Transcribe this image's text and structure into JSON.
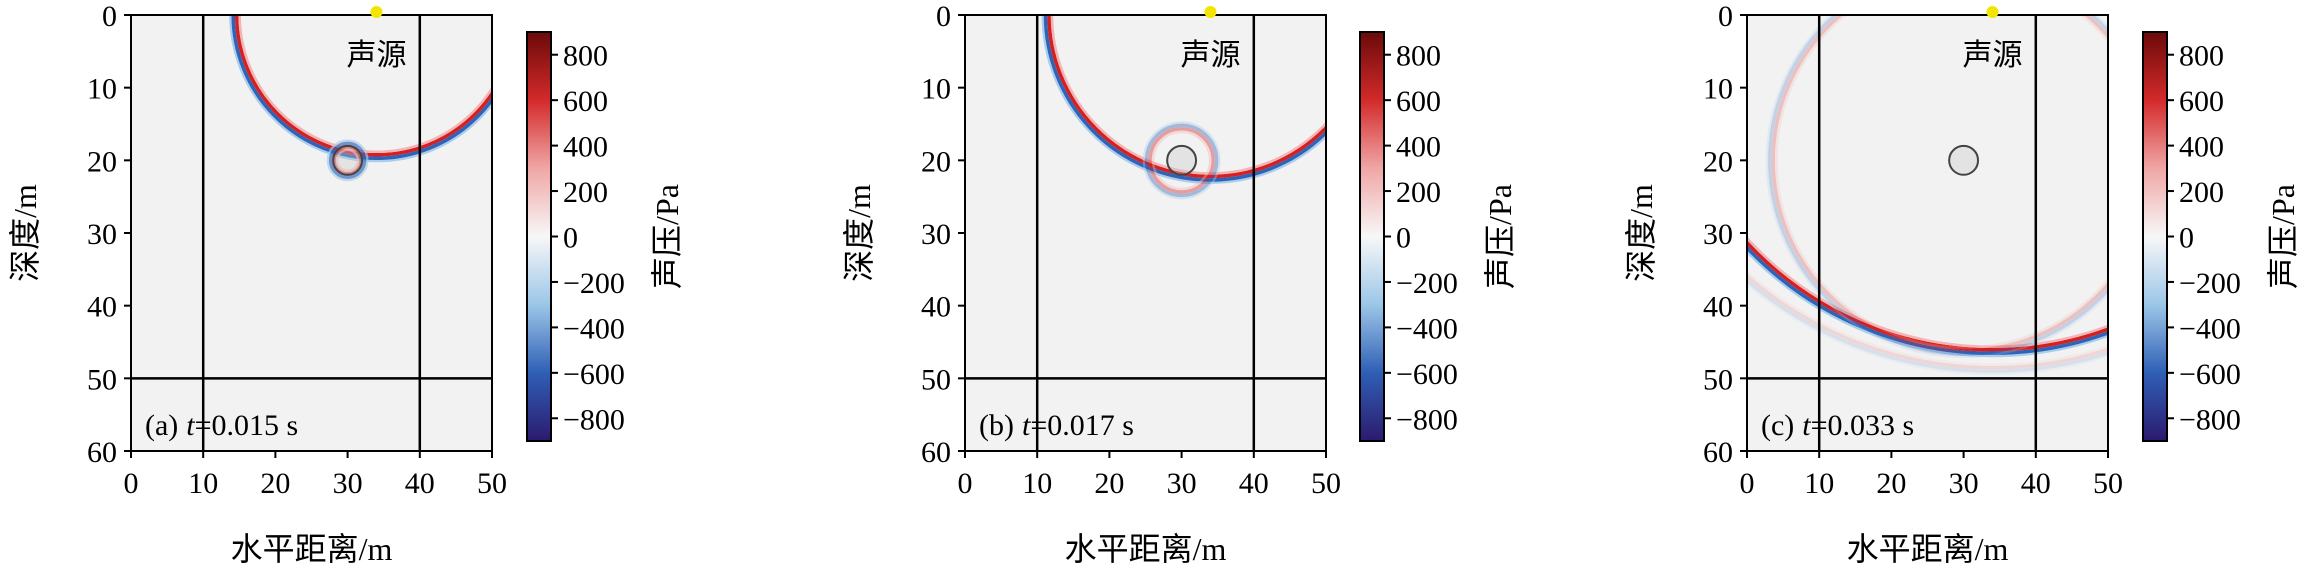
{
  "colors": {
    "background": "#f2f2f2",
    "frame": "#000000",
    "source_marker": "#f2e600",
    "obstacle_edge": "#444444",
    "wave_positive": "#d42020",
    "wave_negative": "#2f63b8",
    "colorbar_stops": [
      "#2b1a6e",
      "#2f5fb5",
      "#9cc6e8",
      "#f7f7f7",
      "#f0a6a6",
      "#d32a2a",
      "#6b0a0a"
    ]
  },
  "chart_data": [
    {
      "type": "heatmap",
      "panel_label": "(a)",
      "time_prefix": "t",
      "time_value": "=0.015 s",
      "xlabel": "水平距离/m",
      "ylabel": "深度/m",
      "xlim": [
        0,
        50
      ],
      "ylim": [
        60,
        0
      ],
      "xticks": [
        "0",
        "10",
        "20",
        "30",
        "40",
        "50"
      ],
      "yticks": [
        "0",
        "10",
        "20",
        "30",
        "40",
        "50",
        "60"
      ],
      "source_label": "声源",
      "source_position": [
        34,
        0
      ],
      "obstacle": {
        "center": [
          30,
          20
        ],
        "radius": 2
      },
      "boundary_lines": {
        "x": [
          10,
          40
        ],
        "y": [
          50
        ]
      },
      "wavefronts": [
        {
          "cx": 34,
          "cy": 0,
          "r": 19.5,
          "amplitude": 1.0
        },
        {
          "cx": 30,
          "cy": 20,
          "r": 2.0,
          "amplitude": 0.6
        }
      ],
      "colorbar": {
        "label": "声压/Pa",
        "range": [
          -900,
          900
        ],
        "ticks": [
          "800",
          "600",
          "400",
          "200",
          "0",
          "−200",
          "−400",
          "−600",
          "−800"
        ]
      }
    },
    {
      "type": "heatmap",
      "panel_label": "(b)",
      "time_prefix": "t",
      "time_value": "=0.017 s",
      "xlabel": "水平距离/m",
      "ylabel": "深度/m",
      "xlim": [
        0,
        50
      ],
      "ylim": [
        60,
        0
      ],
      "xticks": [
        "0",
        "10",
        "20",
        "30",
        "40",
        "50"
      ],
      "yticks": [
        "0",
        "10",
        "20",
        "30",
        "40",
        "50",
        "60"
      ],
      "source_label": "声源",
      "source_position": [
        34,
        0
      ],
      "obstacle": {
        "center": [
          30,
          20
        ],
        "radius": 2
      },
      "boundary_lines": {
        "x": [
          10,
          40
        ],
        "y": [
          50
        ]
      },
      "wavefronts": [
        {
          "cx": 34,
          "cy": 0,
          "r": 22.5,
          "amplitude": 1.0
        },
        {
          "cx": 30,
          "cy": 20,
          "r": 4.5,
          "amplitude": 0.35
        }
      ],
      "colorbar": {
        "label": "声压/Pa",
        "range": [
          -900,
          900
        ],
        "ticks": [
          "800",
          "600",
          "400",
          "200",
          "0",
          "−200",
          "−400",
          "−600",
          "−800"
        ]
      }
    },
    {
      "type": "heatmap",
      "panel_label": "(c)",
      "time_prefix": "t",
      "time_value": "=0.033 s",
      "xlabel": "水平距离/m",
      "ylabel": "深度/m",
      "xlim": [
        0,
        50
      ],
      "ylim": [
        60,
        0
      ],
      "xticks": [
        "0",
        "10",
        "20",
        "30",
        "40",
        "50"
      ],
      "yticks": [
        "0",
        "10",
        "20",
        "30",
        "40",
        "50",
        "60"
      ],
      "source_label": "声源",
      "source_position": [
        34,
        0
      ],
      "obstacle": {
        "center": [
          30,
          20
        ],
        "radius": 2
      },
      "boundary_lines": {
        "x": [
          10,
          40
        ],
        "y": [
          50
        ]
      },
      "wavefronts": [
        {
          "cx": 34,
          "cy": 0,
          "r": 46.5,
          "amplitude": 1.0
        },
        {
          "cx": 30,
          "cy": 20,
          "r": 26.5,
          "amplitude": 0.18
        },
        {
          "cx": 34,
          "cy": -3,
          "r": 52,
          "amplitude": 0.08
        }
      ],
      "colorbar": {
        "label": "声压/Pa",
        "range": [
          -900,
          900
        ],
        "ticks": [
          "800",
          "600",
          "400",
          "200",
          "0",
          "−200",
          "−400",
          "−600",
          "−800"
        ]
      }
    }
  ]
}
